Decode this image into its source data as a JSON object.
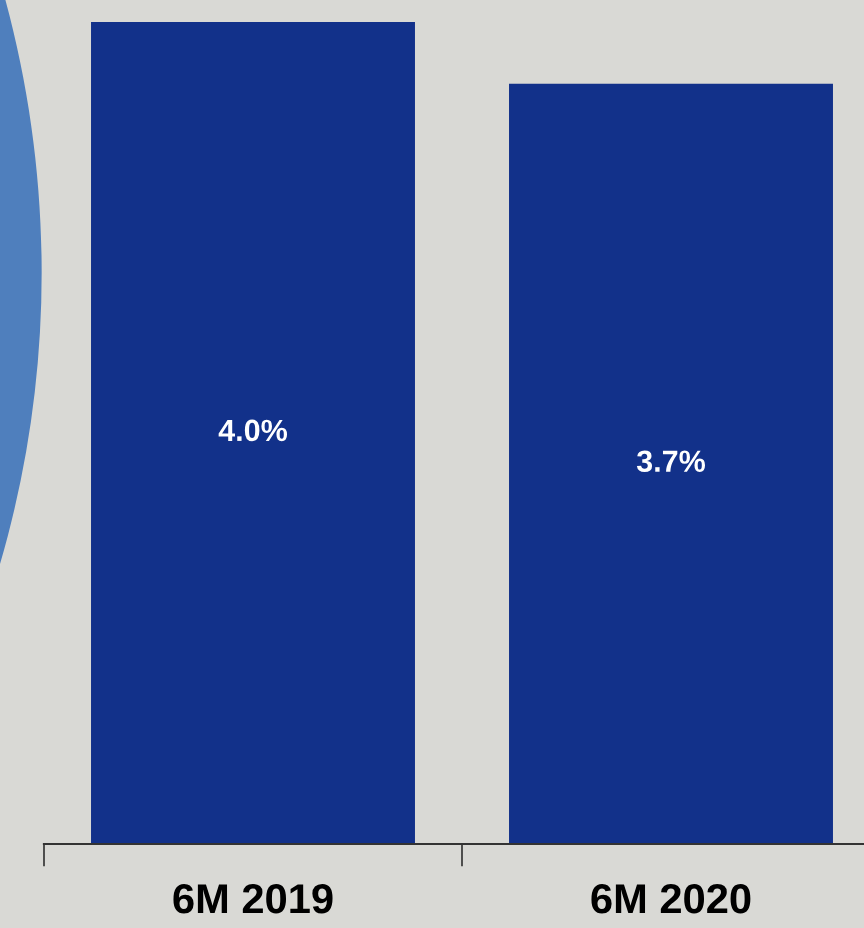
{
  "chart_data": {
    "type": "bar",
    "categories": [
      "6M 2019",
      "6M 2020"
    ],
    "values": [
      4.0,
      3.7
    ],
    "value_labels": [
      "4.0%",
      "3.7%"
    ],
    "color": "#12318a",
    "grid": false,
    "legend": false
  }
}
